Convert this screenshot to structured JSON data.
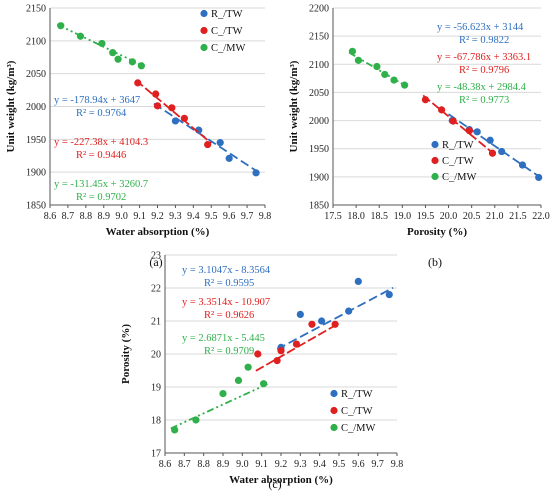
{
  "colors": {
    "tw_r": "#2f6fbf",
    "tw_c": "#e02020",
    "mw_c": "#2fb04a",
    "grid": "#d9d9d9"
  },
  "chart_data": [
    {
      "type": "scatter",
      "panel_label": "(a)",
      "xlabel": "Water absorption (%)",
      "ylabel": "Unit weight (kg/m³)",
      "xlim": [
        8.6,
        9.8
      ],
      "ylim": [
        1850,
        2150
      ],
      "xticks": [
        "8.6",
        "8.7",
        "8.8",
        "8.9",
        "9.0",
        "9.1",
        "9.2",
        "9.3",
        "9.4",
        "9.5",
        "9.6",
        "9.7",
        "9.8"
      ],
      "xtick_values": [
        8.6,
        8.7,
        8.8,
        8.9,
        9.0,
        9.1,
        9.2,
        9.3,
        9.4,
        9.5,
        9.6,
        9.7,
        9.8
      ],
      "yticks": [
        "1850",
        "1900",
        "1950",
        "2000",
        "2050",
        "2100",
        "2150"
      ],
      "ytick_values": [
        1850,
        1900,
        1950,
        2000,
        2050,
        2100,
        2150
      ],
      "legend_position": "top-right",
      "series": [
        {
          "name": "R_/TW",
          "color": "#2f6fbf",
          "x": [
            9.3,
            9.43,
            9.55,
            9.6,
            9.75
          ],
          "y": [
            1978,
            1964,
            1945,
            1921,
            1899
          ],
          "fit": {
            "slope": -178.94,
            "intercept": 3647,
            "x_range": [
              9.18,
              9.78
            ]
          },
          "equation": "y = -178.94x + 3647",
          "r2": "R² = 0.9764"
        },
        {
          "name": "C_/TW",
          "color": "#e02020",
          "x": [
            9.09,
            9.19,
            9.2,
            9.28,
            9.35,
            9.48
          ],
          "y": [
            2036,
            2019,
            2001,
            1998,
            1982,
            1942
          ],
          "fit": {
            "slope": -227.38,
            "intercept": 4104.3,
            "x_range": [
              9.08,
              9.5
            ]
          },
          "equation": "y = -227.38x + 4104.3",
          "r2": "R² = 0.9446"
        },
        {
          "name": "C_/MW",
          "color": "#2fb04a",
          "x": [
            8.66,
            8.77,
            8.89,
            8.95,
            8.98,
            9.06,
            9.11
          ],
          "y": [
            2123,
            2107,
            2096,
            2082,
            2072,
            2068,
            2062
          ],
          "fit": {
            "slope": -131.45,
            "intercept": 3260.7,
            "x_range": [
              8.64,
              9.13
            ]
          },
          "equation": "y = -131.45x + 3260.7",
          "r2": "R² = 0.9702"
        }
      ]
    },
    {
      "type": "scatter",
      "panel_label": "(b)",
      "xlabel": "Porosity (%)",
      "ylabel": "Unit weight (kg/m³)",
      "xlim": [
        17.5,
        22.0
      ],
      "ylim": [
        1850,
        2200
      ],
      "xticks": [
        "17.5",
        "18.0",
        "18.5",
        "19.0",
        "19.5",
        "20.0",
        "20.5",
        "21.0",
        "21.5",
        "22.0"
      ],
      "xtick_values": [
        17.5,
        18.0,
        18.5,
        19.0,
        19.5,
        20.0,
        20.5,
        21.0,
        21.5,
        22.0
      ],
      "yticks": [
        "1850",
        "1900",
        "1950",
        "2000",
        "2050",
        "2100",
        "2150",
        "2200"
      ],
      "ytick_values": [
        1850,
        1900,
        1950,
        2000,
        2050,
        2100,
        2150,
        2200
      ],
      "legend_position": "bottom-right",
      "series": [
        {
          "name": "R_/TW",
          "color": "#2f6fbf",
          "x": [
            20.08,
            20.45,
            20.62,
            20.9,
            21.15,
            21.6,
            21.95
          ],
          "y": [
            2000,
            1984,
            1980,
            1965,
            1945,
            1921,
            1899
          ],
          "fit": {
            "slope": -56.623,
            "intercept": 3144,
            "x_range": [
              20.0,
              21.98
            ]
          },
          "equation": "y = -56.623x + 3144",
          "r2": "R² = 0.9822"
        },
        {
          "name": "C_/TW",
          "color": "#e02020",
          "x": [
            19.5,
            19.85,
            20.1,
            20.45,
            20.95
          ],
          "y": [
            2037,
            2019,
            1999,
            1982,
            1942
          ],
          "fit": {
            "slope": -67.786,
            "intercept": 3363.1,
            "x_range": [
              19.45,
              21.0
            ]
          },
          "equation": "y = -67.786x + 3363.1",
          "r2": "R² = 0.9796"
        },
        {
          "name": "C_/MW",
          "color": "#2fb04a",
          "x": [
            17.92,
            18.05,
            18.45,
            18.62,
            18.82,
            19.05
          ],
          "y": [
            2123,
            2107,
            2096,
            2082,
            2072,
            2063
          ],
          "fit": {
            "slope": -48.38,
            "intercept": 2984.4,
            "x_range": [
              17.85,
              19.1
            ]
          },
          "equation": "y = -48.38x + 2984.4",
          "r2": "R² = 0.9773"
        }
      ]
    },
    {
      "type": "scatter",
      "panel_label": "(c)",
      "xlabel": "Water absorption (%)",
      "ylabel": "Porosity (%)",
      "xlim": [
        8.6,
        9.8
      ],
      "ylim": [
        17,
        23
      ],
      "xticks": [
        "8.6",
        "8.7",
        "8.8",
        "8.9",
        "9.0",
        "9.1",
        "9.2",
        "9.3",
        "9.4",
        "9.5",
        "9.6",
        "9.7",
        "9.8"
      ],
      "xtick_values": [
        8.6,
        8.7,
        8.8,
        8.9,
        9.0,
        9.1,
        9.2,
        9.3,
        9.4,
        9.5,
        9.6,
        9.7,
        9.8
      ],
      "yticks": [
        "17",
        "18",
        "19",
        "20",
        "21",
        "22",
        "23"
      ],
      "ytick_values": [
        17,
        18,
        19,
        20,
        21,
        22,
        23
      ],
      "legend_position": "bottom-right",
      "series": [
        {
          "name": "R_/TW",
          "color": "#2f6fbf",
          "x": [
            9.2,
            9.3,
            9.41,
            9.55,
            9.6,
            9.76
          ],
          "y": [
            20.2,
            21.2,
            21.0,
            21.3,
            22.2,
            21.8
          ],
          "fit": {
            "slope": 3.1047,
            "intercept": -8.3564,
            "x_range": [
              9.18,
              9.78
            ]
          },
          "equation": "y = 3.1047x - 8.3564",
          "r2": "R² = 0.9595"
        },
        {
          "name": "C_/TW",
          "color": "#e02020",
          "x": [
            9.08,
            9.18,
            9.2,
            9.28,
            9.36,
            9.48
          ],
          "y": [
            20.0,
            19.8,
            20.1,
            20.3,
            20.9,
            20.9
          ],
          "fit": {
            "slope": 3.3514,
            "intercept": -10.907,
            "x_range": [
              9.07,
              9.5
            ]
          },
          "equation": "y = 3.3514x - 10.907",
          "r2": "R² = 0.9626"
        },
        {
          "name": "C_/MW",
          "color": "#2fb04a",
          "x": [
            8.65,
            8.76,
            8.9,
            8.98,
            9.03,
            9.11
          ],
          "y": [
            17.7,
            18.0,
            18.8,
            19.2,
            19.6,
            19.1
          ],
          "fit": {
            "slope": 2.6871,
            "intercept": -5.445,
            "x_range": [
              8.63,
              9.13
            ]
          },
          "equation": "y = 2.6871x - 5.445",
          "r2": "R² = 0.9709"
        }
      ]
    }
  ]
}
